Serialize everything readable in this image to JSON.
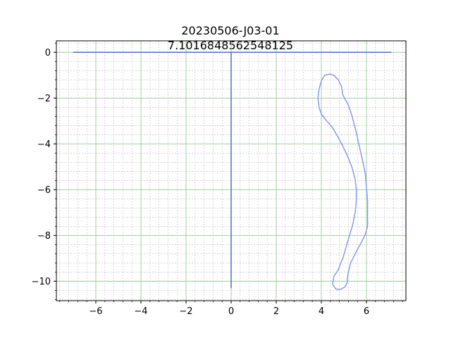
{
  "chart_data": {
    "type": "line",
    "title": "20230506-J03-01",
    "subtitle": "7.1016848562548125",
    "xlabel": "",
    "ylabel": "",
    "xlim": [
      -7.75,
      7.75
    ],
    "ylim": [
      -10.85,
      0.5
    ],
    "x_ticks": [
      -6,
      -4,
      -2,
      0,
      2,
      4,
      6
    ],
    "y_ticks": [
      0,
      -2,
      -4,
      -6,
      -8,
      -10
    ],
    "x_tick_labels": [
      "−6",
      "−4",
      "−2",
      "0",
      "2",
      "4",
      "6"
    ],
    "y_tick_labels": [
      "0",
      "−2",
      "−4",
      "−6",
      "−8",
      "−10"
    ],
    "grid": {
      "major": true,
      "minor": true,
      "major_color": "#99cc99",
      "minor_color": "#bbbbbb"
    },
    "series": [
      {
        "color": "#4a6fd0",
        "x": [
          -7.0,
          7.1
        ],
        "y": [
          0,
          0
        ]
      },
      {
        "color": "#4a6fd0",
        "x": [
          0,
          0
        ],
        "y": [
          0,
          -10.3
        ]
      },
      {
        "color": "#8a99ee",
        "closed": true,
        "x": [
          4.35,
          4.55,
          4.75,
          4.9,
          4.95,
          5.05,
          5.2,
          5.35,
          5.5,
          5.65,
          5.8,
          5.95,
          6.0,
          6.05,
          6.05,
          6.05,
          5.95,
          5.75,
          5.5,
          5.3,
          5.2,
          5.15,
          5.15,
          5.05,
          4.85,
          4.65,
          4.5,
          4.55,
          4.75,
          4.95,
          5.1,
          5.25,
          5.4,
          5.5,
          5.55,
          5.55,
          5.5,
          5.35,
          5.15,
          4.85,
          4.5,
          4.2,
          4.0,
          3.9,
          3.85,
          3.9,
          4.0,
          4.15
        ],
        "y": [
          -0.95,
          -1.0,
          -1.2,
          -1.5,
          -1.85,
          -2.05,
          -2.3,
          -2.75,
          -3.3,
          -3.95,
          -4.6,
          -5.3,
          -5.9,
          -6.5,
          -7.1,
          -7.6,
          -7.95,
          -8.35,
          -8.8,
          -9.2,
          -9.6,
          -9.9,
          -10.05,
          -10.25,
          -10.35,
          -10.35,
          -10.15,
          -9.8,
          -9.5,
          -9.0,
          -8.5,
          -8.0,
          -7.5,
          -7.0,
          -6.5,
          -6.0,
          -5.55,
          -5.0,
          -4.5,
          -3.9,
          -3.3,
          -2.95,
          -2.7,
          -2.4,
          -2.0,
          -1.6,
          -1.25,
          -1.0
        ]
      }
    ]
  }
}
